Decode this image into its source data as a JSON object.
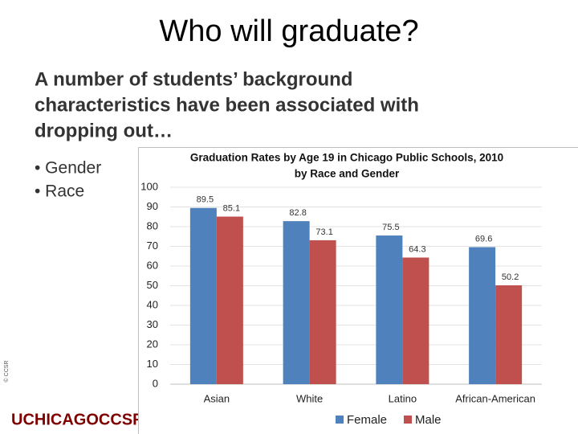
{
  "title": "Who will graduate?",
  "lead": [
    "A number of students’ background",
    "characteristics have been associated with",
    "dropping out…"
  ],
  "bullets": [
    "• Gender",
    "• Race"
  ],
  "logo": "UCHICAGOCCSR",
  "copyright": "© CCSR",
  "chart_data": {
    "type": "bar",
    "title": [
      "Graduation Rates by Age 19 in Chicago Public Schools, 2010",
      "by Race and Gender"
    ],
    "categories": [
      "Asian",
      "White",
      "Latino",
      "African-American"
    ],
    "series": [
      {
        "name": "Female",
        "color": "#4f81bd",
        "values": [
          89.5,
          82.8,
          75.5,
          69.6
        ]
      },
      {
        "name": "Male",
        "color": "#c0504d",
        "values": [
          85.1,
          73.1,
          64.3,
          50.2
        ]
      }
    ],
    "ylim": [
      0,
      100
    ],
    "yticks": [
      0,
      10,
      20,
      30,
      40,
      50,
      60,
      70,
      80,
      90,
      100
    ],
    "grid": true,
    "legend": "bottom"
  }
}
